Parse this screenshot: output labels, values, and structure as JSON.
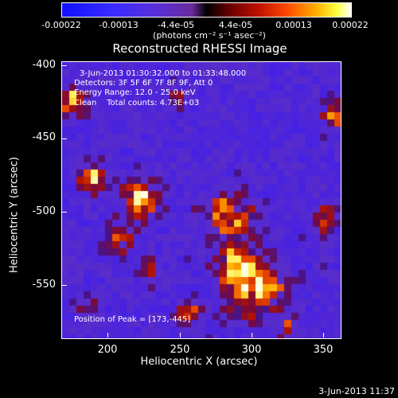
{
  "colorbar": {
    "ticks": [
      "-0.00022",
      "-0.00013",
      "-4.4e-05",
      "4.4e-05",
      "0.00013",
      "0.00022"
    ],
    "unit": "(photons cm⁻² s⁻¹ asec⁻²)"
  },
  "title": "Reconstructed RHESSI Image",
  "info": {
    "time_range": "3-Jun-2013 01:30:32.000 to 01:33:48.000",
    "detectors": "Detectors: 3F 5F 6F 7F 8F 9F, Att 0",
    "energy": "Energy Range: 12.0 - 25.0 keV",
    "algorithm": "Clean    Total counts: 4.73E+03",
    "peak": "Position of Peak = [173,-445]"
  },
  "axes": {
    "xlabel": "Heliocentric X (arcsec)",
    "ylabel": "Heliocentric Y (arcsec)",
    "xticks": [
      "200",
      "250",
      "300",
      "350"
    ],
    "yticks": [
      "-400",
      "-450",
      "-500",
      "-550"
    ],
    "xrange": [
      167,
      361
    ],
    "yrange": [
      -588,
      -396
    ]
  },
  "timestamp": "3-Jun-2013 11:37",
  "colors": {
    "background": "#000000",
    "negative": "#3a2cff",
    "positive": "#ffb000"
  }
}
